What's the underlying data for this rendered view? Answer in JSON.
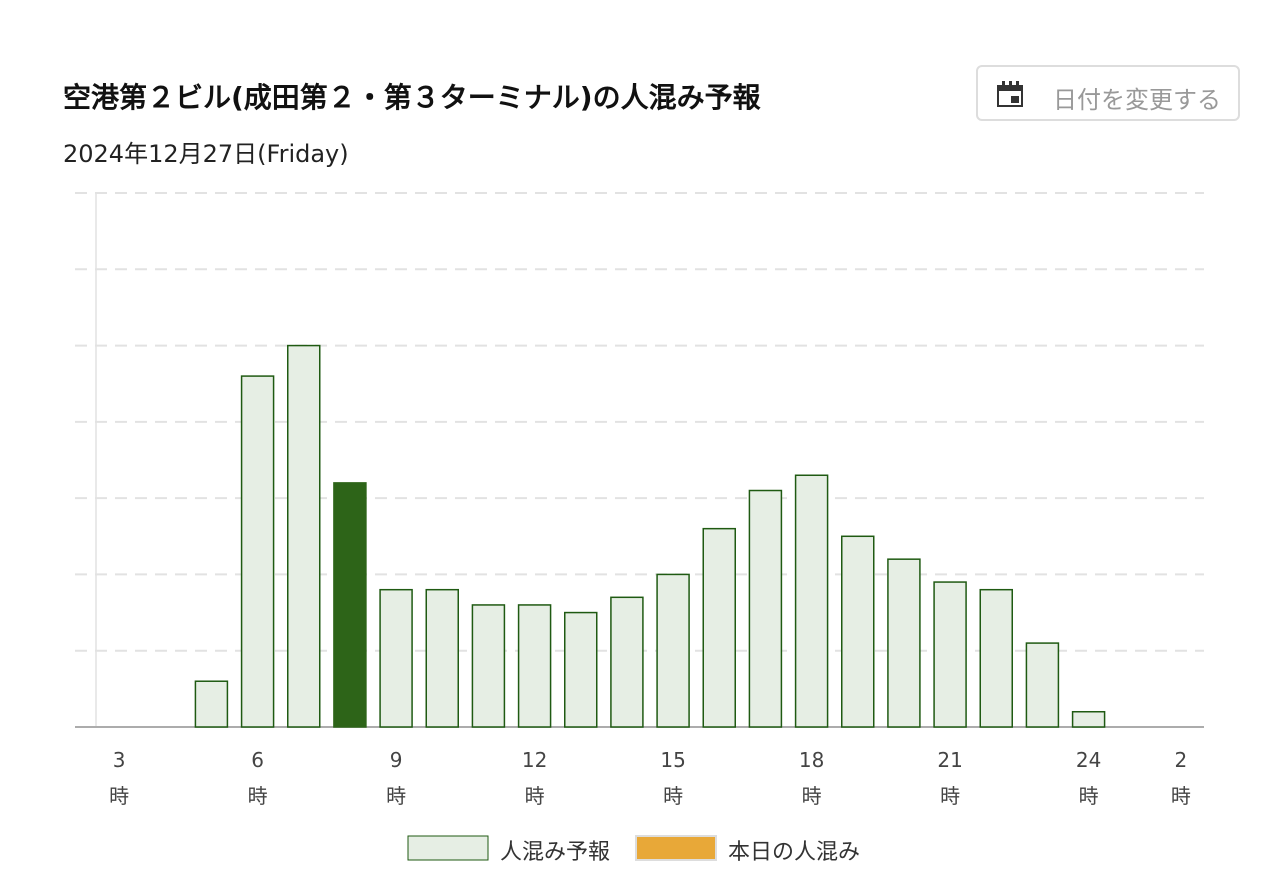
{
  "button": {
    "label": "日付を変更する"
  },
  "chart_data": {
    "type": "bar",
    "title": "空港第２ビル(成田第２・第３ターミナル)の人混み予報",
    "subtitle": "2024年12月27日(Friday)",
    "categories": [
      "3\n時",
      null,
      null,
      "6\n時",
      null,
      null,
      "9\n時",
      null,
      null,
      "12\n時",
      null,
      null,
      "15\n時",
      null,
      null,
      "18\n時",
      null,
      null,
      "21\n時",
      null,
      null,
      "24\n時",
      null,
      "2\n時"
    ],
    "series": [
      {
        "name": "人混み予報",
        "color": "#e6eee4",
        "border_color": "#1f5a12",
        "values": [
          0,
          0,
          0.6,
          4.6,
          5.0,
          3.2,
          1.8,
          1.8,
          1.6,
          1.6,
          1.5,
          1.7,
          2.0,
          2.6,
          3.1,
          3.3,
          2.5,
          2.2,
          1.9,
          1.8,
          1.1,
          0.2,
          0,
          0
        ]
      },
      {
        "name": "本日の人混み",
        "color": "#e8a838",
        "values": [
          null,
          null,
          null,
          null,
          null,
          null,
          null,
          null,
          null,
          null,
          null,
          null,
          null,
          null,
          null,
          null,
          null,
          null,
          null,
          null,
          null,
          null,
          null,
          null
        ]
      }
    ],
    "highlight": {
      "index": 5,
      "color": "#2d6418"
    },
    "ylim": [
      0,
      7
    ],
    "yticks": [
      0,
      1,
      2,
      3,
      4,
      5,
      6,
      7
    ],
    "grid": true
  }
}
